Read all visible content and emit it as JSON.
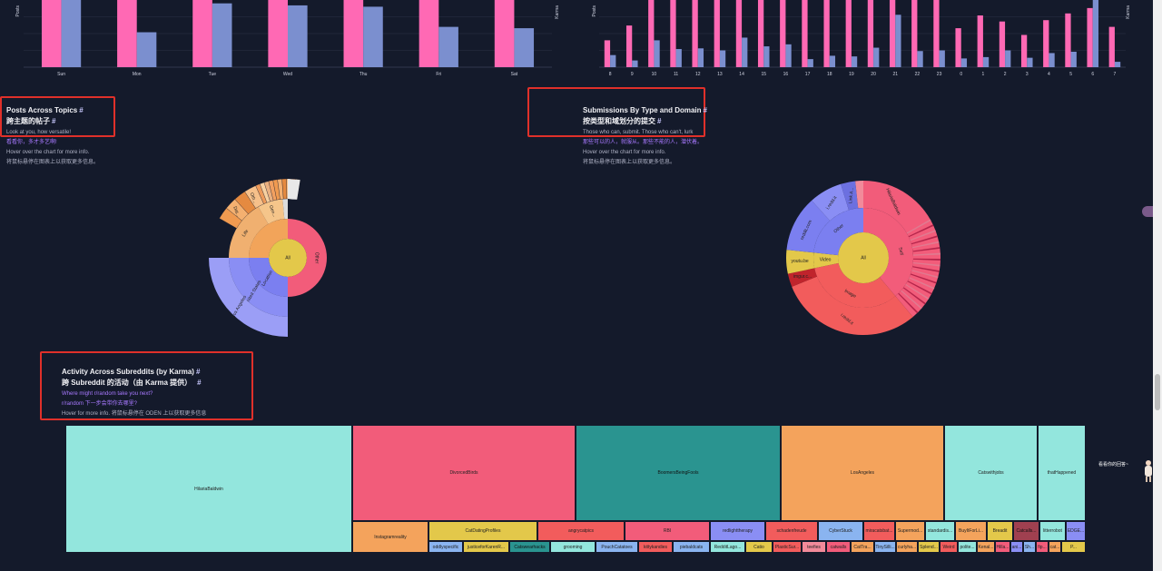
{
  "colors": {
    "background": "#141a2b",
    "pink": "#ff69b4",
    "blue": "#7b8fcf",
    "highlight": "#e0302a"
  },
  "top_left_chart": {
    "chart_data": {
      "type": "bar",
      "categories": [
        "Sun",
        "Mon",
        "Tue",
        "Wed",
        "Thu",
        "Fri",
        "Sat"
      ],
      "series": [
        {
          "values": [
            100,
            100,
            100,
            100,
            100,
            100,
            100
          ]
        },
        {
          "values": [
            100,
            52,
            95,
            92,
            90,
            60,
            58
          ]
        }
      ],
      "ylim": [
        0,
        100
      ],
      "ylabel_left": "Posts",
      "ylabel_right": "Karma"
    }
  },
  "top_right_chart": {
    "chart_data": {
      "type": "bar",
      "categories": [
        "8",
        "9",
        "10",
        "11",
        "12",
        "13",
        "14",
        "15",
        "16",
        "17",
        "18",
        "19",
        "20",
        "21",
        "22",
        "23",
        "0",
        "1",
        "2",
        "3",
        "4",
        "5",
        "6",
        "7"
      ],
      "series": [
        {
          "values": [
            40,
            62,
            100,
            100,
            100,
            100,
            100,
            100,
            100,
            100,
            100,
            100,
            100,
            100,
            100,
            100,
            58,
            77,
            68,
            48,
            70,
            80,
            88,
            60
          ]
        },
        {
          "values": [
            18,
            10,
            40,
            27,
            28,
            25,
            44,
            31,
            34,
            12,
            17,
            16,
            29,
            78,
            24,
            25,
            13,
            15,
            25,
            14,
            21,
            23,
            100,
            8
          ]
        }
      ],
      "ylim": [
        0,
        100
      ],
      "ylabel_left": "Posts",
      "ylabel_right": "Karma"
    }
  },
  "posts_across_topics": {
    "title": "Posts Across Topics",
    "hash": "#",
    "title_cn": "跨主题的帖子",
    "subtitle": "Look at you, how versatile!",
    "subtitle_cn": "看看你，多才多艺啊!",
    "hint": "Hover over the chart for more info.",
    "hint_cn": "将鼠标悬停在图表上以获取更多信息。",
    "chart_data": {
      "type": "sunburst",
      "center": "All",
      "labels": [
        "All",
        "Other",
        "Location",
        "United States",
        "Los Angeles",
        "Life",
        "Gen...",
        "Dat...",
        "Oth..."
      ]
    }
  },
  "submissions_by_type": {
    "title": "Submissions By Type and Domain",
    "hash": "#",
    "title_cn": "按类型和域划分的提交",
    "subtitle": "Those who can, submit. Those who can't, lurk",
    "subtitle_cn": "那些可以的人，就服从。那些不能的人，潜伏着。",
    "hint": "Hover over the chart for more info.",
    "hint_cn": "将鼠标悬停在图表上以获取更多信息。",
    "chart_data": {
      "type": "sunburst",
      "center": "All",
      "labels": [
        "All",
        "Self",
        "Image",
        "Other",
        "Video",
        "i.redd.it",
        "HilariaBaldwin",
        "i.redd.it",
        "reddit.com",
        "youtu.be",
        "imgur.c...",
        "Link A..."
      ]
    }
  },
  "activity_across_subreddits": {
    "title": "Activity Across Subreddits (by Karma)",
    "hash": "#",
    "title_cn": "跨 Subreddit 的活动（由 Karma 提供）",
    "subtitle": "Where might r/random take you next?",
    "subtitle_cn": "r/random 下一步会带你去哪里?",
    "hint": "Hover for more info.",
    "hint_cn": "将鼠标悬停在 ODEN 上以获取更多信息"
  },
  "treemap": {
    "chart_data": {
      "type": "treemap",
      "cells": [
        {
          "label": "HilariaBaldwin"
        },
        {
          "label": "DivorcedBirds"
        },
        {
          "label": "BoomersBeingFools"
        },
        {
          "label": "LosAngeles"
        },
        {
          "label": "Catswithjobs"
        },
        {
          "label": "thatHappened"
        },
        {
          "label": "Instagramreality"
        },
        {
          "label": "CatDatingProfiles"
        },
        {
          "label": "angrycatpics"
        },
        {
          "label": "RBI"
        },
        {
          "label": "redlighttherapy"
        },
        {
          "label": "schadenfreude"
        },
        {
          "label": "CyberStuck"
        },
        {
          "label": "miracatsbat..."
        },
        {
          "label": "Supermod..."
        },
        {
          "label": "standardis..."
        },
        {
          "label": "BuyItForLi..."
        },
        {
          "label": "Breadit"
        },
        {
          "label": "Catcalls..."
        },
        {
          "label": "litterrobot"
        },
        {
          "label": "EDGE..."
        },
        {
          "label": "oddlyspecific"
        },
        {
          "label": "justiceforKarenR..."
        },
        {
          "label": "Catswearhacks"
        },
        {
          "label": "grooming"
        },
        {
          "label": "PouchCatatoes"
        },
        {
          "label": "kittykandies"
        },
        {
          "label": "piebaldcats"
        },
        {
          "label": "RedditLago..."
        },
        {
          "label": "Catio"
        },
        {
          "label": "PlasticSur..."
        },
        {
          "label": "teefies"
        },
        {
          "label": "catwalls"
        },
        {
          "label": "CatTra..."
        },
        {
          "label": "TinySilli..."
        },
        {
          "label": "curlyha..."
        },
        {
          "label": "Splend..."
        },
        {
          "label": "Weird"
        },
        {
          "label": "polite..."
        },
        {
          "label": "Kenal..."
        },
        {
          "label": "Hilla..."
        },
        {
          "label": "ani..."
        },
        {
          "label": "Sh..."
        },
        {
          "label": "fip..."
        },
        {
          "label": "cat..."
        },
        {
          "label": "P..."
        }
      ]
    }
  },
  "tooltip_text": "看看你的回答~"
}
